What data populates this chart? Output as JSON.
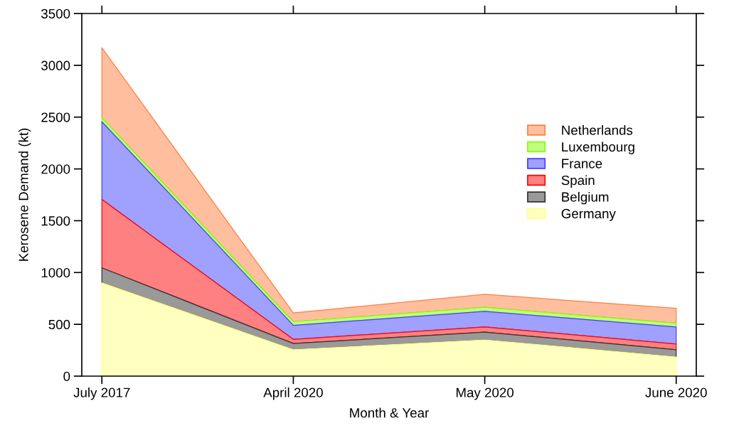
{
  "chart_data": {
    "type": "area",
    "stacked": true,
    "xlabel": "Month & Year",
    "ylabel": "Kerosene Demand (kt)",
    "categories": [
      "July 2017",
      "April 2020",
      "May 2020",
      "June 2020"
    ],
    "series": [
      {
        "name": "Germany",
        "color": "#ffffc0",
        "values": [
          900,
          255,
          350,
          185
        ]
      },
      {
        "name": "Belgium",
        "color": "#999999",
        "values": [
          145,
          60,
          75,
          70
        ]
      },
      {
        "name": "Spain",
        "color": "#ff8080",
        "values": [
          660,
          40,
          50,
          55
        ]
      },
      {
        "name": "France",
        "color": "#a0a0ff",
        "values": [
          750,
          135,
          150,
          165
        ]
      },
      {
        "name": "Luxembourg",
        "color": "#c0ff80",
        "values": [
          40,
          35,
          40,
          35
        ]
      },
      {
        "name": "Netherlands",
        "color": "#ffbf9f",
        "values": [
          675,
          85,
          125,
          145
        ]
      }
    ],
    "ylim": [
      0,
      3500
    ],
    "yticks": [
      0,
      500,
      1000,
      1500,
      2000,
      2500,
      3000,
      3500
    ],
    "grid": false,
    "legend": "right"
  }
}
